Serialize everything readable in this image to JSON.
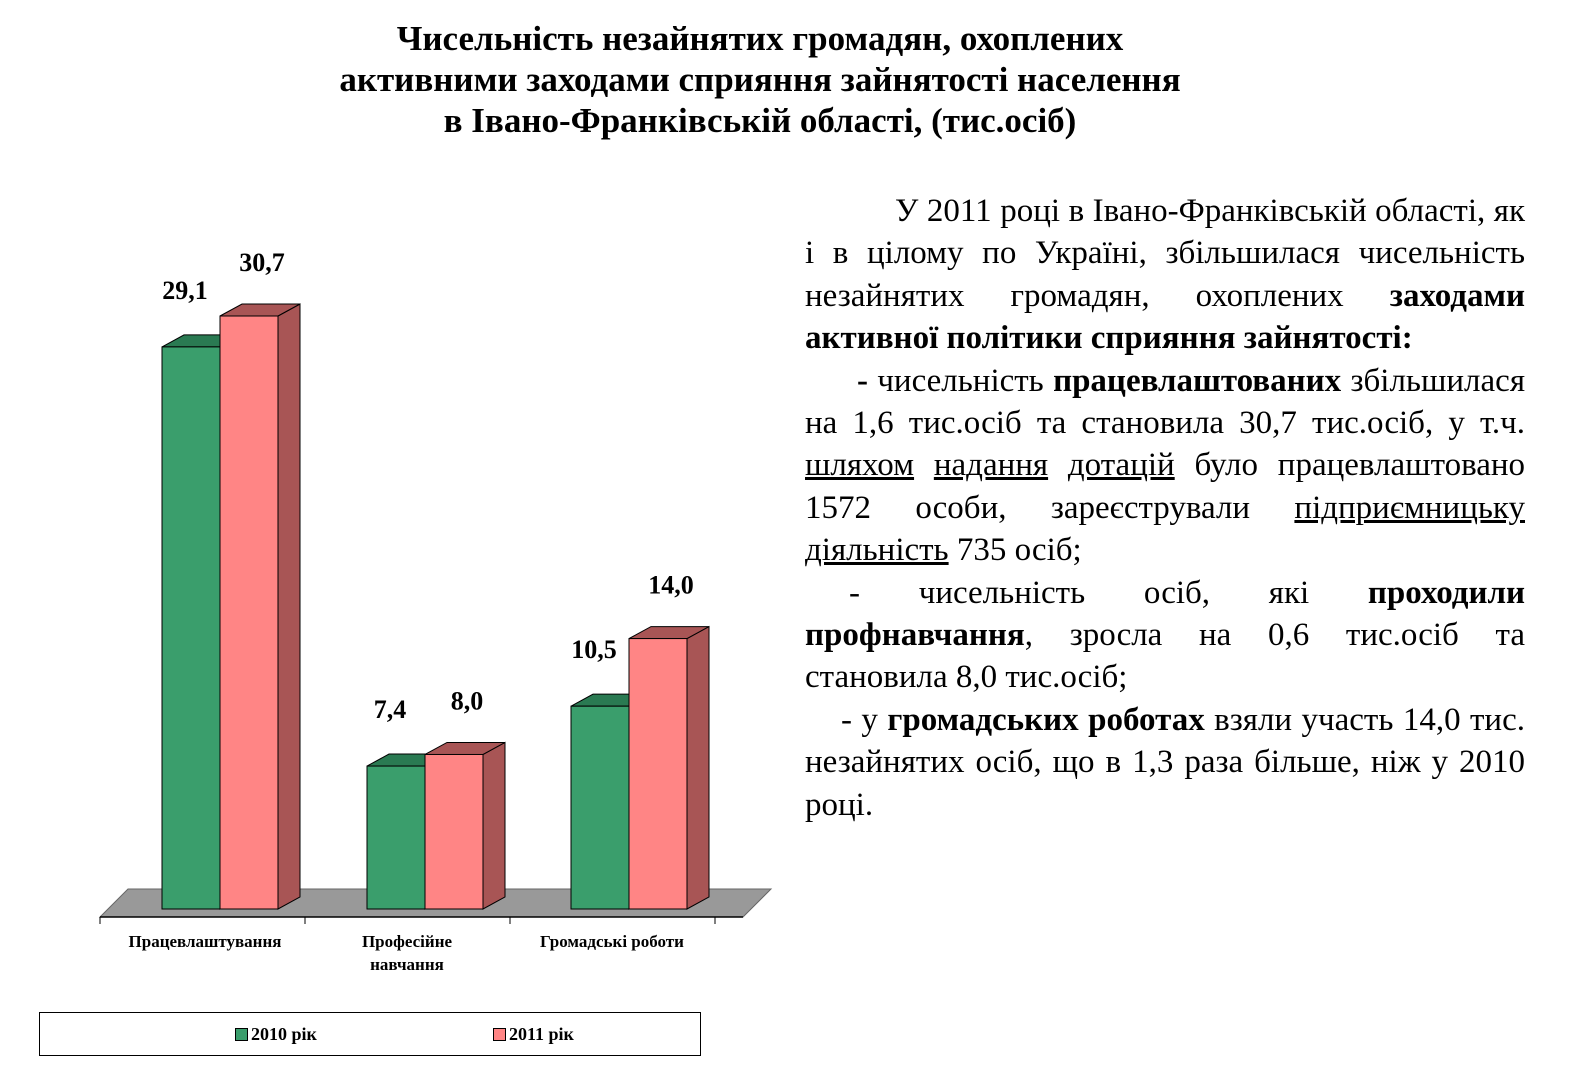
{
  "title_lines": [
    "Чисельність незайнятих громадян, охоплених",
    "активними заходами сприяння зайнятості населення",
    "в Івано-Франківській області,  (тис.осіб)"
  ],
  "chart_data": {
    "type": "bar",
    "categories": [
      [
        "Працевлаштування"
      ],
      [
        "Професійне",
        "навчання"
      ],
      [
        "Громадські роботи"
      ]
    ],
    "series": [
      {
        "name": "2010 рік",
        "values": [
          29.1,
          7.4,
          10.5
        ],
        "labels": [
          "29,1",
          "7,4",
          "10,5"
        ],
        "color": "#3a9e6c",
        "side_color": "#2a7a52"
      },
      {
        "name": "2011 рік",
        "values": [
          30.7,
          8.0,
          14.0
        ],
        "labels": [
          "30,7",
          "8,0",
          "14,0"
        ],
        "color": "#ff8585",
        "side_color": "#a85555"
      }
    ],
    "ylim": [
      0,
      31
    ],
    "grid": false,
    "legend_position": "bottom",
    "floor_color": "#999999"
  },
  "text": {
    "p1_a": "У  2011  році  в  Івано-Франківській  області, як і в цілому по Україні, збільшилася чисельність незайнятих громадян, охоплених ",
    "p1_b": "заходами активної політики сприяння зайнятості:",
    "p2_a": "-",
    "p2_b": "  чисельність ",
    "p2_c": "працевлаштованих",
    "p2_d": " збільшилася  на 1,6 тис.осіб та становила 30,7 тис.осіб, у т.ч. ",
    "p2_u1": "шляхом",
    "p2_u2": "надання",
    "p2_u3": "дотацій",
    "p2_e": " було працевлаштовано 1572 особи, зареєстрували ",
    "p2_u4": "підприємницьку",
    "p2_u5": "діяльність",
    "p2_f": " 735 осіб;",
    "p3_a": "-  чисельність осіб,  які  ",
    "p3_b": "проходили профнавчання",
    "p3_c": ",  зросла  на  0,6  тис.осіб та  становила  8,0 тис.осіб;",
    "p4_a": "-  у  ",
    "p4_b": "громадських роботах",
    "p4_c": "  взяли участь 14,0 тис.  незайнятих осіб,  що  в  1,3  раза більше, ніж у 2010 році."
  }
}
